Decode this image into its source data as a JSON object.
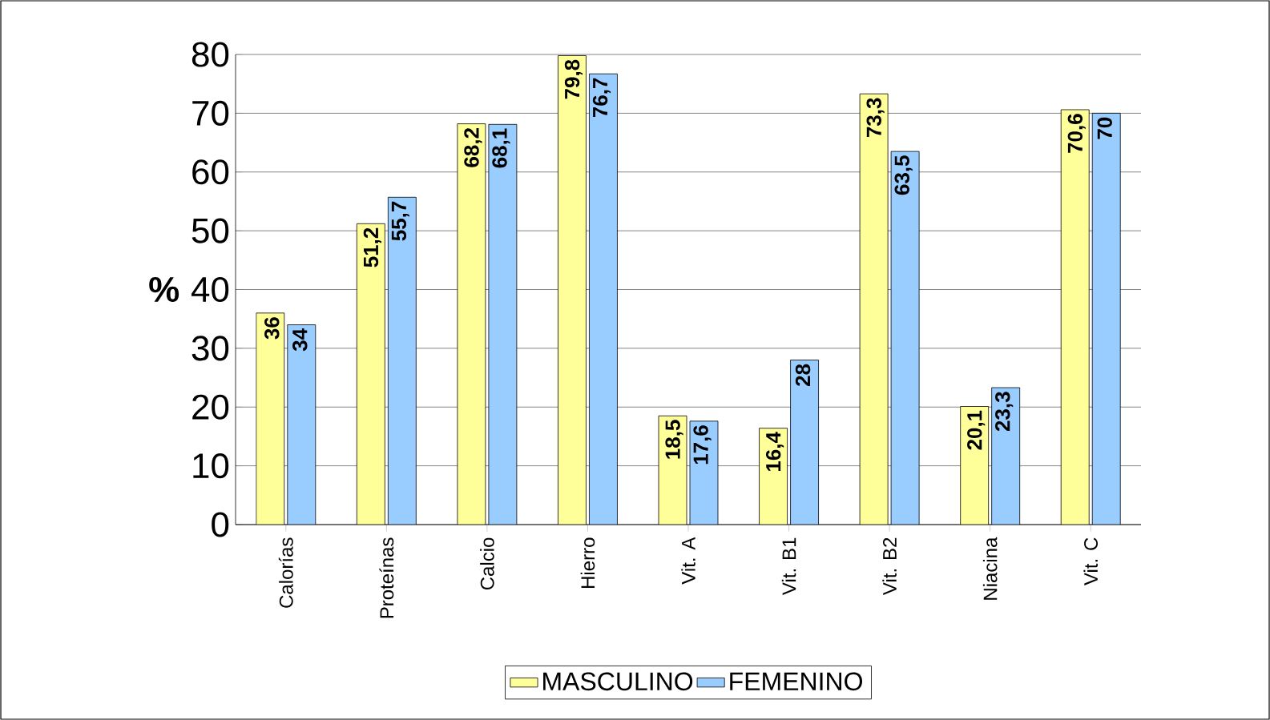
{
  "chart_data": {
    "type": "bar",
    "ylabel": "%",
    "categories": [
      "Calorías",
      "Proteínas",
      "Calcio",
      "Hierro",
      "Vit. A",
      "Vit. B1",
      "Vit. B2",
      "Niacina",
      "Vit. C"
    ],
    "series": [
      {
        "name": "MASCULINO",
        "color": "#ffff99",
        "values": [
          36,
          51.2,
          68.2,
          79.8,
          18.5,
          16.4,
          73.3,
          20.1,
          70.6
        ],
        "value_labels": [
          "36",
          "51,2",
          "68,2",
          "79,8",
          "18,5",
          "16,4",
          "73,3",
          "20,1",
          "70,6"
        ]
      },
      {
        "name": "FEMENINO",
        "color": "#99ccff",
        "values": [
          34,
          55.7,
          68.1,
          76.7,
          17.6,
          28,
          63.5,
          23.3,
          70
        ],
        "value_labels": [
          "34",
          "55,7",
          "68,1",
          "76,7",
          "17,6",
          "28",
          "63,5",
          "23,3",
          "70"
        ]
      }
    ],
    "ylim": [
      0,
      80
    ],
    "yticks": [
      0,
      10,
      20,
      30,
      40,
      50,
      60,
      70,
      80
    ],
    "grid": "y",
    "legend": "bottom"
  }
}
